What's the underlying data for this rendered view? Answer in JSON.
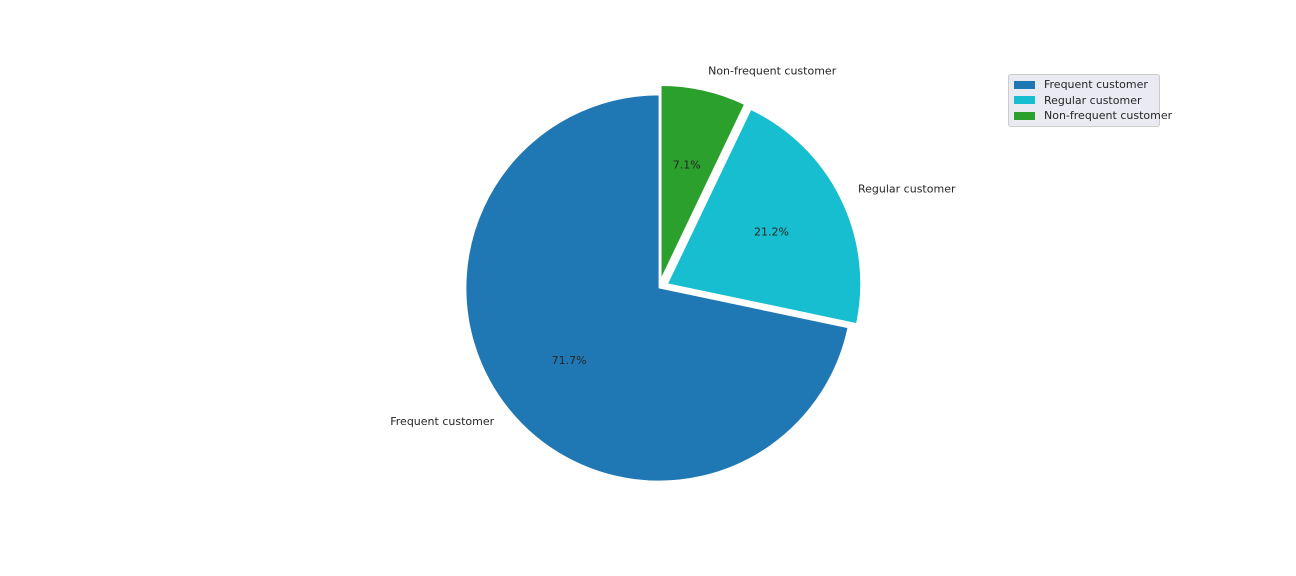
{
  "chart_data": {
    "type": "pie",
    "title": "",
    "slices": [
      {
        "label": "Frequent customer",
        "value": 71.7,
        "pct_label": "71.7%",
        "color": "#1f77b4",
        "explode": 0.0
      },
      {
        "label": "Regular customer",
        "value": 21.2,
        "pct_label": "21.2%",
        "color": "#17becf",
        "explode": 0.05
      },
      {
        "label": "Non-frequent customer",
        "value": 7.1,
        "pct_label": "7.1%",
        "color": "#2ca02c",
        "explode": 0.05
      }
    ],
    "start_angle_deg": 90,
    "direction": "counterclockwise",
    "legend": {
      "placement": "upper right",
      "entries": [
        "Frequent customer",
        "Regular customer",
        "Non-frequent customer"
      ]
    }
  }
}
